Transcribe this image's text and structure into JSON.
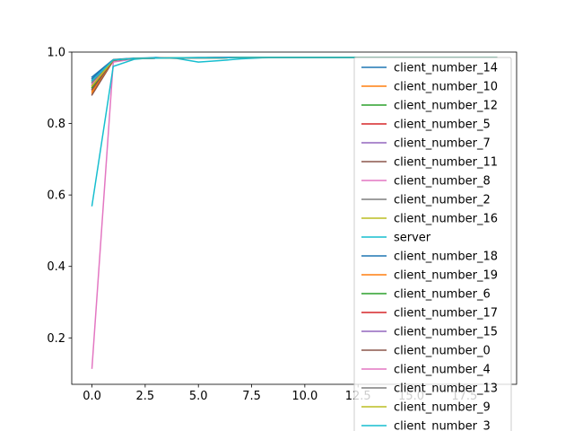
{
  "chart_data": {
    "type": "line",
    "title": "",
    "xlabel": "",
    "ylabel": "",
    "xlim": [
      -0.95,
      19.95
    ],
    "ylim": [
      0.07,
      1.0
    ],
    "xticks": [
      0,
      2.5,
      5,
      7.5,
      10,
      12.5,
      15,
      17.5
    ],
    "xtick_labels": [
      "0.0",
      "2.5",
      "5.0",
      "7.5",
      "10.0",
      "12.5",
      "15.0",
      "17.5"
    ],
    "yticks": [
      0.2,
      0.4,
      0.6,
      0.8,
      1.0
    ],
    "ytick_labels": [
      "0.2",
      "0.4",
      "0.6",
      "0.8",
      "1.0"
    ],
    "grid": false,
    "legend_position": "upper-right",
    "x": [
      0,
      1,
      2,
      3,
      4,
      5,
      6,
      7,
      8,
      9,
      10,
      11,
      12,
      13,
      14,
      15,
      16,
      17,
      18,
      19
    ],
    "series": [
      {
        "name": "client_number_14",
        "color": "#1f77b4",
        "values": [
          0.925,
          0.978,
          0.982,
          0.983,
          0.984,
          0.984,
          0.984,
          0.985,
          0.985,
          0.985,
          0.985,
          0.985,
          0.985,
          0.985,
          0.985,
          0.985,
          0.985,
          0.985,
          0.985,
          0.985
        ]
      },
      {
        "name": "client_number_10",
        "color": "#ff7f0e",
        "values": [
          0.885,
          0.977,
          0.982,
          0.983,
          0.984,
          0.984,
          0.984,
          0.985,
          0.985,
          0.985,
          0.985,
          0.985,
          0.985,
          0.985,
          0.985,
          0.985,
          0.985,
          0.985,
          0.985,
          0.985
        ]
      },
      {
        "name": "client_number_12",
        "color": "#2ca02c",
        "values": [
          0.905,
          0.978,
          0.982,
          0.984,
          0.984,
          0.984,
          0.985,
          0.985,
          0.985,
          0.985,
          0.985,
          0.985,
          0.985,
          0.985,
          0.985,
          0.985,
          0.985,
          0.985,
          0.985,
          0.985
        ]
      },
      {
        "name": "client_number_5",
        "color": "#d62728",
        "values": [
          0.895,
          0.977,
          0.982,
          0.983,
          0.984,
          0.984,
          0.984,
          0.985,
          0.985,
          0.985,
          0.985,
          0.985,
          0.985,
          0.985,
          0.985,
          0.985,
          0.985,
          0.985,
          0.985,
          0.985
        ]
      },
      {
        "name": "client_number_7",
        "color": "#9467bd",
        "values": [
          0.915,
          0.978,
          0.982,
          0.983,
          0.984,
          0.984,
          0.985,
          0.985,
          0.985,
          0.985,
          0.985,
          0.985,
          0.985,
          0.985,
          0.985,
          0.985,
          0.985,
          0.985,
          0.985,
          0.985
        ]
      },
      {
        "name": "client_number_11",
        "color": "#8c564b",
        "values": [
          0.88,
          0.976,
          0.982,
          0.983,
          0.984,
          0.984,
          0.984,
          0.985,
          0.985,
          0.985,
          0.985,
          0.985,
          0.985,
          0.985,
          0.985,
          0.985,
          0.985,
          0.985,
          0.985,
          0.985
        ]
      },
      {
        "name": "client_number_8",
        "color": "#e377c2",
        "values": [
          0.115,
          0.972,
          0.981,
          0.983,
          0.984,
          0.984,
          0.984,
          0.985,
          0.985,
          0.985,
          0.985,
          0.985,
          0.985,
          0.985,
          0.985,
          0.985,
          0.985,
          0.985,
          0.985,
          0.985
        ]
      },
      {
        "name": "client_number_2",
        "color": "#7f7f7f",
        "values": [
          0.91,
          0.978,
          0.982,
          0.983,
          0.984,
          0.984,
          0.984,
          0.985,
          0.985,
          0.985,
          0.985,
          0.985,
          0.985,
          0.985,
          0.985,
          0.985,
          0.985,
          0.985,
          0.985,
          0.985
        ]
      },
      {
        "name": "client_number_16",
        "color": "#bcbd22",
        "values": [
          0.9,
          0.978,
          0.982,
          0.983,
          0.984,
          0.984,
          0.984,
          0.985,
          0.985,
          0.985,
          0.985,
          0.985,
          0.985,
          0.985,
          0.985,
          0.985,
          0.985,
          0.985,
          0.985,
          0.985
        ]
      },
      {
        "name": "server",
        "color": "#17becf",
        "values": [
          0.57,
          0.96,
          0.98,
          0.985,
          0.982,
          0.972,
          0.976,
          0.981,
          0.984,
          0.985,
          0.985,
          0.985,
          0.985,
          0.985,
          0.985,
          0.985,
          0.985,
          0.985,
          0.985,
          0.985
        ]
      },
      {
        "name": "client_number_18",
        "color": "#1f77b4",
        "values": [
          0.93,
          0.979,
          0.983,
          0.984,
          0.984,
          0.985,
          0.985,
          0.985,
          0.985,
          0.985,
          0.985,
          0.985,
          0.985,
          0.985,
          0.985,
          0.985,
          0.985,
          0.985,
          0.985,
          0.985
        ]
      },
      {
        "name": "client_number_19",
        "color": "#ff7f0e",
        "values": [
          0.89,
          0.977,
          0.982,
          0.983,
          0.984,
          0.984,
          0.984,
          0.985,
          0.985,
          0.985,
          0.985,
          0.985,
          0.985,
          0.985,
          0.985,
          0.985,
          0.985,
          0.985,
          0.985,
          0.985
        ]
      },
      {
        "name": "client_number_6",
        "color": "#2ca02c",
        "values": [
          0.9,
          0.977,
          0.982,
          0.983,
          0.984,
          0.984,
          0.984,
          0.985,
          0.985,
          0.985,
          0.985,
          0.985,
          0.985,
          0.985,
          0.985,
          0.985,
          0.985,
          0.985,
          0.985,
          0.985
        ]
      },
      {
        "name": "client_number_17",
        "color": "#d62728",
        "values": [
          0.905,
          0.978,
          0.982,
          0.983,
          0.984,
          0.984,
          0.984,
          0.985,
          0.985,
          0.985,
          0.985,
          0.985,
          0.985,
          0.985,
          0.985,
          0.985,
          0.985,
          0.985,
          0.985,
          0.985
        ]
      },
      {
        "name": "client_number_15",
        "color": "#9467bd",
        "values": [
          0.92,
          0.978,
          0.982,
          0.983,
          0.984,
          0.984,
          0.985,
          0.985,
          0.985,
          0.985,
          0.985,
          0.985,
          0.985,
          0.985,
          0.985,
          0.985,
          0.985,
          0.985,
          0.985,
          0.985
        ]
      },
      {
        "name": "client_number_0",
        "color": "#8c564b",
        "values": [
          0.895,
          0.977,
          0.982,
          0.983,
          0.984,
          0.984,
          0.984,
          0.985,
          0.985,
          0.985,
          0.985,
          0.985,
          0.985,
          0.985,
          0.985,
          0.985,
          0.985,
          0.985,
          0.985,
          0.985
        ]
      },
      {
        "name": "client_number_4",
        "color": "#e377c2",
        "values": [
          0.91,
          0.978,
          0.982,
          0.983,
          0.984,
          0.984,
          0.984,
          0.985,
          0.985,
          0.985,
          0.985,
          0.985,
          0.985,
          0.985,
          0.985,
          0.985,
          0.985,
          0.985,
          0.985,
          0.985
        ]
      },
      {
        "name": "client_number_13",
        "color": "#7f7f7f",
        "values": [
          0.915,
          0.978,
          0.982,
          0.983,
          0.984,
          0.984,
          0.984,
          0.985,
          0.985,
          0.985,
          0.985,
          0.985,
          0.985,
          0.985,
          0.985,
          0.985,
          0.985,
          0.985,
          0.985,
          0.985
        ]
      },
      {
        "name": "client_number_9",
        "color": "#bcbd22",
        "values": [
          0.905,
          0.978,
          0.982,
          0.983,
          0.984,
          0.984,
          0.984,
          0.985,
          0.985,
          0.985,
          0.985,
          0.985,
          0.985,
          0.985,
          0.985,
          0.985,
          0.985,
          0.985,
          0.985,
          0.985
        ]
      },
      {
        "name": "client_number_3",
        "color": "#17becf",
        "values": [
          0.92,
          0.978,
          0.982,
          0.983,
          0.984,
          0.984,
          0.984,
          0.985,
          0.985,
          0.985,
          0.985,
          0.985,
          0.985,
          0.985,
          0.985,
          0.985,
          0.985,
          0.985,
          0.985,
          0.985
        ]
      }
    ]
  }
}
